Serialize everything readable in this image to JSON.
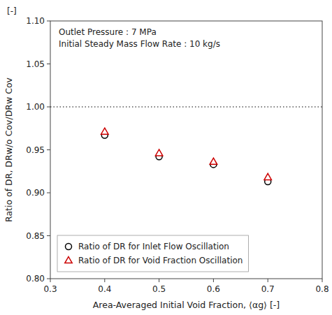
{
  "chart_data": {
    "type": "scatter",
    "x_label": "Area-Averaged Initial Void Fraction, ⟨αg⟩ [-]",
    "y_label": "Ratio of DR, DRw/o Cov/DRw Cov",
    "y_unit": "[-]",
    "annotations": [
      "Outlet Pressure : 7 MPa",
      "Initial Steady Mass Flow Rate : 10 kg/s"
    ],
    "series": [
      {
        "name": "Ratio of DR for Inlet Flow Oscillation",
        "color": "black",
        "marker": "circle",
        "x": [
          0.4,
          0.5,
          0.6,
          0.7
        ],
        "values": [
          0.967,
          0.942,
          0.933,
          0.913
        ]
      },
      {
        "name": "Ratio of DR for Void Fraction Oscillation",
        "color": "#cc0000",
        "marker": "triangle",
        "x": [
          0.4,
          0.5,
          0.6,
          0.7
        ],
        "values": [
          0.971,
          0.946,
          0.936,
          0.918
        ]
      }
    ],
    "reference_lines": [
      {
        "y": 1.0,
        "line_style": "dotted"
      }
    ],
    "xlim": [
      0.3,
      0.8
    ],
    "ylim": [
      0.8,
      1.1
    ],
    "xticks": [
      0.3,
      0.4,
      0.5,
      0.6,
      0.7,
      0.8
    ],
    "yticks": [
      {
        "value": 0.8,
        "label": "0.80"
      },
      0.85,
      {
        "value": 0.9,
        "label": "0.90"
      },
      0.95,
      {
        "value": 1.0,
        "label": "1.00"
      },
      1.05,
      {
        "value": 1.1,
        "label": "1.10"
      }
    ],
    "grid": false,
    "legend": "lower left"
  }
}
